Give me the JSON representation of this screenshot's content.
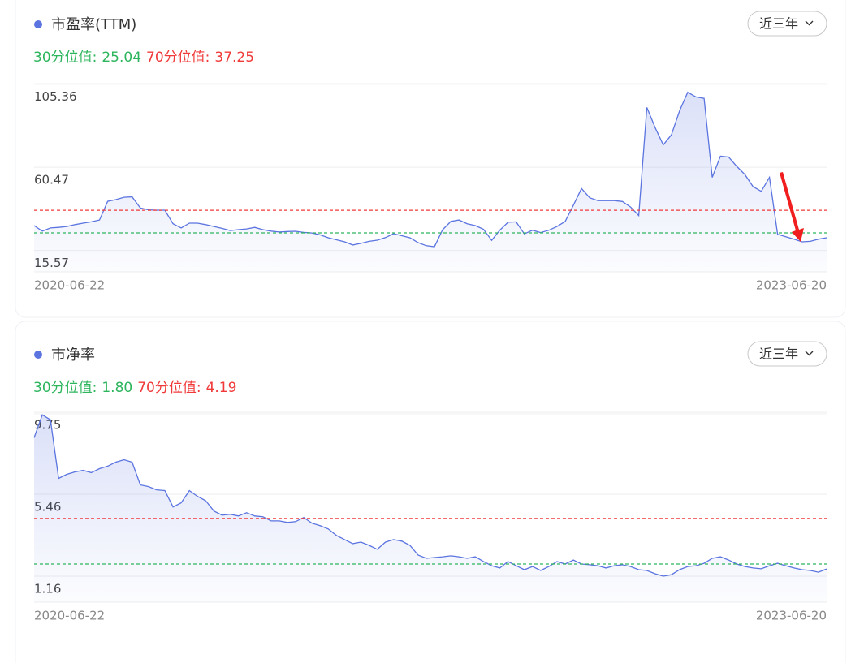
{
  "chart_data": [
    {
      "type": "line",
      "title": "市盈率(TTM)",
      "range_button": "近三年",
      "p30": {
        "name": "30分位值:",
        "value": 25.04,
        "color": "#2db55d"
      },
      "p70": {
        "name": "70分位值:",
        "value": 37.25,
        "color": "#f03a3a"
      },
      "ylim": [
        4,
        107
      ],
      "yticks": [
        15.57,
        60.47,
        105.36
      ],
      "grid": true,
      "color": "#5b74e0",
      "categories": [
        "2020-06-22",
        null,
        null,
        null,
        null,
        null,
        null,
        null,
        null,
        null,
        null,
        null,
        null,
        null,
        null,
        null,
        null,
        null,
        null,
        null,
        null,
        null,
        null,
        null,
        null,
        null,
        null,
        null,
        null,
        null,
        null,
        null,
        null,
        null,
        null,
        null,
        null,
        null,
        null,
        null,
        null,
        null,
        null,
        null,
        null,
        null,
        null,
        null,
        null,
        null,
        null,
        null,
        null,
        null,
        null,
        null,
        null,
        null,
        null,
        null,
        null,
        null,
        null,
        null,
        null,
        null,
        null,
        null,
        null,
        null,
        null,
        null,
        null,
        null,
        null,
        null,
        null,
        null,
        null,
        null,
        null,
        null,
        null,
        null,
        null,
        null,
        null,
        null,
        null,
        null,
        null,
        null,
        null,
        null,
        null,
        null,
        null,
        "2023-06-20"
      ],
      "values": [
        29.0,
        26.0,
        27.7,
        28.0,
        28.5,
        29.5,
        30.3,
        31.0,
        32.0,
        42.1,
        43.0,
        44.3,
        44.5,
        38.5,
        37.5,
        37.3,
        37.3,
        30.0,
        27.7,
        30.3,
        30.3,
        29.5,
        28.5,
        27.5,
        26.3,
        26.8,
        27.2,
        28.0,
        26.8,
        26.0,
        25.5,
        25.8,
        25.9,
        25.3,
        25.0,
        24.0,
        22.4,
        21.3,
        20.2,
        18.5,
        19.4,
        20.5,
        21.1,
        22.5,
        24.6,
        23.5,
        22.4,
        19.8,
        18.1,
        17.6,
        26.8,
        31.2,
        32.0,
        30.0,
        29.0,
        27.0,
        21.0,
        26.5,
        30.8,
        31.0,
        24.5,
        26.5,
        25.2,
        26.5,
        28.5,
        31.2,
        40.0,
        49.0,
        44.0,
        42.5,
        42.5,
        42.5,
        42.0,
        39.0,
        34.4,
        92.8,
        82.0,
        72.6,
        78.0,
        91.0,
        101.0,
        98.5,
        97.7,
        55.0,
        66.5,
        66.0,
        61.0,
        56.5,
        50.0,
        47.5,
        55.0,
        24.3,
        23.0,
        21.6,
        20.2,
        20.5,
        21.6,
        22.4
      ]
    },
    {
      "type": "line",
      "title": "市净率",
      "range_button": "近三年",
      "p30": {
        "name": "30分位值:",
        "value": 1.8,
        "label": "1.80",
        "color": "#2db55d"
      },
      "p70": {
        "name": "70分位值:",
        "value": 4.19,
        "color": "#f03a3a"
      },
      "ylim": [
        -0.2,
        9.8
      ],
      "yticks": [
        1.16,
        5.46,
        9.75
      ],
      "grid": true,
      "color": "#5b74e0",
      "categories": [
        "2020-06-22",
        null,
        null,
        null,
        null,
        null,
        null,
        null,
        null,
        null,
        null,
        null,
        null,
        null,
        null,
        null,
        null,
        null,
        null,
        null,
        null,
        null,
        null,
        null,
        null,
        null,
        null,
        null,
        null,
        null,
        null,
        null,
        null,
        null,
        null,
        null,
        null,
        null,
        null,
        null,
        null,
        null,
        null,
        null,
        null,
        null,
        null,
        null,
        null,
        null,
        null,
        null,
        null,
        null,
        null,
        null,
        null,
        null,
        null,
        null,
        null,
        null,
        null,
        null,
        null,
        null,
        null,
        null,
        null,
        null,
        null,
        null,
        null,
        null,
        null,
        null,
        null,
        null,
        null,
        null,
        null,
        null,
        null,
        null,
        null,
        null,
        null,
        null,
        null,
        null,
        null,
        null,
        null,
        null,
        null,
        null,
        null,
        "2023-06-20"
      ],
      "values": [
        8.42,
        9.62,
        9.36,
        6.29,
        6.5,
        6.63,
        6.71,
        6.59,
        6.8,
        6.93,
        7.14,
        7.27,
        7.14,
        5.95,
        5.86,
        5.69,
        5.65,
        4.79,
        5.01,
        5.65,
        5.35,
        5.12,
        4.58,
        4.36,
        4.41,
        4.32,
        4.49,
        4.32,
        4.28,
        4.06,
        4.06,
        3.98,
        4.02,
        4.24,
        3.94,
        3.81,
        3.64,
        3.3,
        3.08,
        2.87,
        2.95,
        2.78,
        2.57,
        2.95,
        3.08,
        3.0,
        2.78,
        2.27,
        2.1,
        2.14,
        2.18,
        2.23,
        2.18,
        2.1,
        2.18,
        1.93,
        1.71,
        1.59,
        1.93,
        1.71,
        1.5,
        1.67,
        1.46,
        1.67,
        1.93,
        1.8,
        2.01,
        1.8,
        1.76,
        1.71,
        1.59,
        1.71,
        1.76,
        1.67,
        1.5,
        1.46,
        1.29,
        1.16,
        1.24,
        1.5,
        1.67,
        1.71,
        1.84,
        2.1,
        2.18,
        2.01,
        1.8,
        1.67,
        1.59,
        1.55,
        1.71,
        1.84,
        1.71,
        1.59,
        1.5,
        1.46,
        1.37,
        1.54
      ]
    }
  ]
}
